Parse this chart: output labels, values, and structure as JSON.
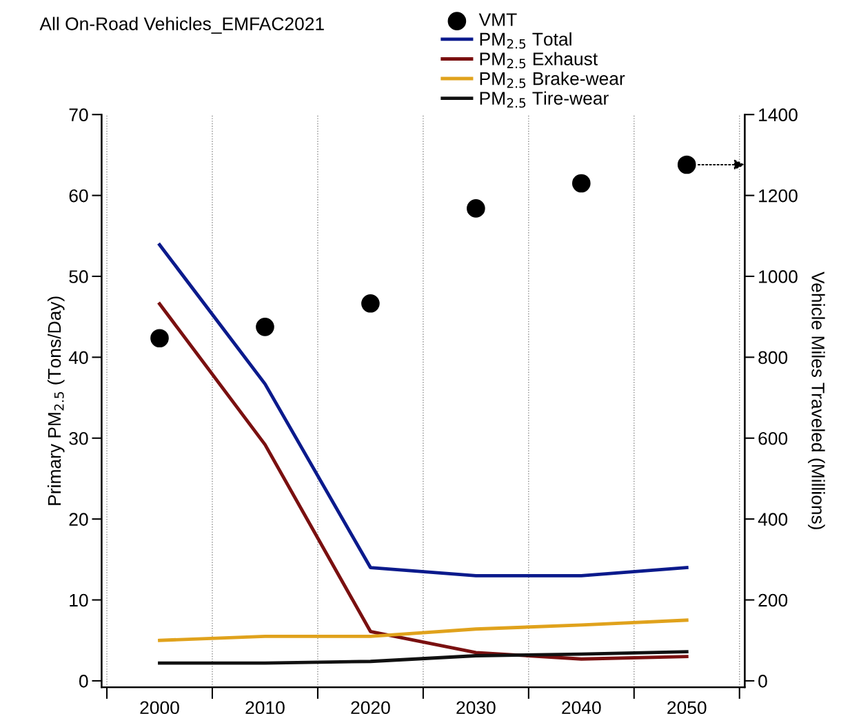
{
  "chart_data": {
    "type": "line",
    "title": "All On-Road Vehicles_EMFAC2021",
    "x": [
      2000,
      2010,
      2020,
      2030,
      2040,
      2050
    ],
    "series": [
      {
        "name": "VMT",
        "type": "scatter",
        "axis": "y2",
        "color": "#000000",
        "marker": "circle",
        "values": [
          847,
          875,
          933,
          1168,
          1230,
          1276
        ]
      },
      {
        "name": "PM$_{2.5}$ Total",
        "color": "#0b1a8c",
        "values": [
          53.9,
          36.7,
          14.0,
          13.0,
          13.0,
          14.0
        ]
      },
      {
        "name": "PM$_{2.5}$ Exhaust",
        "color": "#7a1010",
        "values": [
          46.6,
          29.2,
          6.1,
          3.5,
          2.7,
          3.0
        ]
      },
      {
        "name": "PM$_{2.5}$ Brake-wear",
        "color": "#e0a21c",
        "values": [
          5.0,
          5.5,
          5.5,
          6.4,
          6.9,
          7.5
        ]
      },
      {
        "name": "PM$_{2.5}$ Tire-wear",
        "color": "#111111",
        "values": [
          2.2,
          2.2,
          2.4,
          3.1,
          3.3,
          3.6
        ]
      }
    ],
    "ylabel": "Primary PM$_{2.5}$ (Tons/Day)",
    "y2label": "Vehicle Miles Traveled (Millions)",
    "xlim": [
      1994.5,
      2055.5
    ],
    "xticks": [
      {
        "value": 1995,
        "label": null
      },
      2000,
      {
        "value": 2005,
        "label": null
      },
      2010,
      {
        "value": 2015,
        "label": null
      },
      2020,
      {
        "value": 2025,
        "label": null
      },
      2030,
      {
        "value": 2035,
        "label": null
      },
      2040,
      {
        "value": 2045,
        "label": null
      },
      2050,
      {
        "value": 2055,
        "label": null
      }
    ],
    "ylim": [
      -0.8,
      70
    ],
    "yticks": [
      0,
      10,
      20,
      30,
      40,
      50,
      60,
      70
    ],
    "y2lim": [
      -16,
      1400
    ],
    "y2ticks": [
      0,
      200,
      400,
      600,
      800,
      1000,
      1200,
      1400
    ],
    "grid": "x",
    "legend": "top",
    "line_style": "solid"
  }
}
